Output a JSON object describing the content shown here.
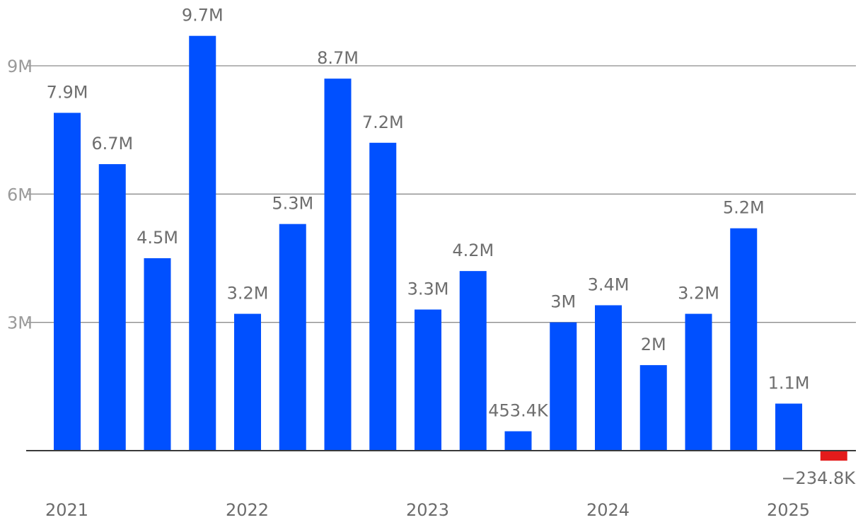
{
  "chart_data": {
    "type": "bar",
    "title": "",
    "xlabel": "",
    "ylabel": "",
    "ylim": [
      -600000,
      10300000
    ],
    "yticks": [
      {
        "value": 3000000,
        "label": "3M"
      },
      {
        "value": 6000000,
        "label": "6M"
      },
      {
        "value": 9000000,
        "label": "9M"
      }
    ],
    "grid": true,
    "year_labels": [
      {
        "label": "2021",
        "bar_index": 0
      },
      {
        "label": "2022",
        "bar_index": 4
      },
      {
        "label": "2023",
        "bar_index": 8
      },
      {
        "label": "2024",
        "bar_index": 12
      },
      {
        "label": "2025",
        "bar_index": 16
      }
    ],
    "positive_color": "#0050FF",
    "negative_color": "#E31B1B",
    "values": [
      7900000,
      6700000,
      4500000,
      9700000,
      3200000,
      5300000,
      8700000,
      7200000,
      3300000,
      4200000,
      453400,
      3000000,
      3400000,
      2000000,
      3200000,
      5200000,
      1100000,
      -234800
    ],
    "data_labels": [
      "7.9M",
      "6.7M",
      "4.5M",
      "9.7M",
      "3.2M",
      "5.3M",
      "8.7M",
      "7.2M",
      "3.3M",
      "4.2M",
      "453.4K",
      "3M",
      "3.4M",
      "2M",
      "3.2M",
      "5.2M",
      "1.1M",
      "−234.8K"
    ]
  }
}
